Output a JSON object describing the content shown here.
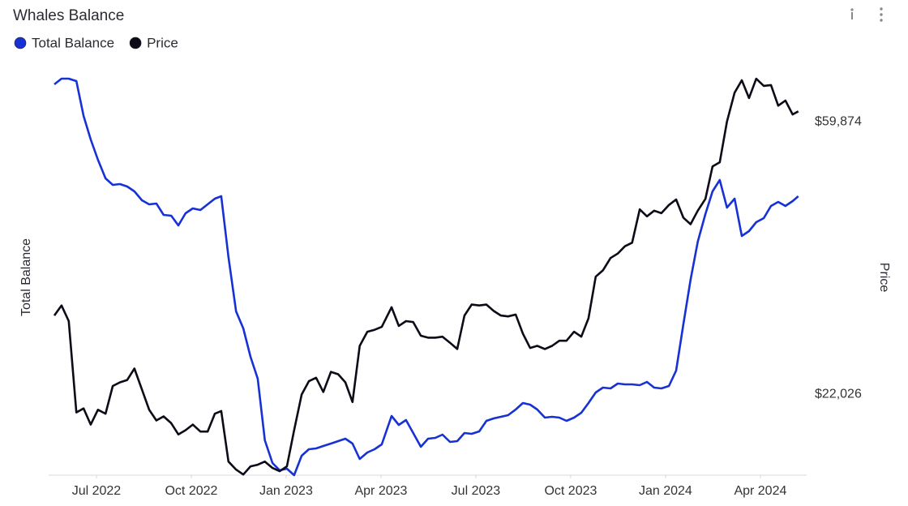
{
  "chart_data": {
    "type": "line",
    "title": "Whales Balance",
    "y_label": "Total Balance",
    "y2_label": "Price",
    "legend": "top-left",
    "y2scale": "log",
    "x": [
      2022.389,
      2022.408,
      2022.427,
      2022.447,
      2022.466,
      2022.485,
      2022.504,
      2022.524,
      2022.543,
      2022.562,
      2022.581,
      2022.6,
      2022.62,
      2022.639,
      2022.658,
      2022.677,
      2022.697,
      2022.716,
      2022.735,
      2022.754,
      2022.774,
      2022.793,
      2022.812,
      2022.829,
      2022.848,
      2022.868,
      2022.887,
      2022.906,
      2022.925,
      2022.944,
      2022.964,
      2022.983,
      2023.002,
      2023.021,
      2023.041,
      2023.06,
      2023.079,
      2023.098,
      2023.118,
      2023.137,
      2023.156,
      2023.175,
      2023.194,
      2023.214,
      2023.233,
      2023.252,
      2023.278,
      2023.297,
      2023.316,
      2023.335,
      2023.355,
      2023.374,
      2023.393,
      2023.412,
      2023.432,
      2023.451,
      2023.47,
      2023.489,
      2023.509,
      2023.528,
      2023.547,
      2023.566,
      2023.585,
      2023.605,
      2023.624,
      2023.643,
      2023.662,
      2023.682,
      2023.701,
      2023.72,
      2023.739,
      2023.759,
      2023.778,
      2023.797,
      2023.816,
      2023.835,
      2023.855,
      2023.874,
      2023.893,
      2023.912,
      2023.932,
      2023.951,
      2023.97,
      2023.989,
      2024.009,
      2024.028,
      2024.047,
      2024.066,
      2024.085,
      2024.105,
      2024.124,
      2024.143,
      2024.162,
      2024.182,
      2024.201,
      2024.22,
      2024.239,
      2024.259,
      2024.278,
      2024.297,
      2024.316,
      2024.335,
      2024.35
    ],
    "xlim": [
      2022.374,
      2024.372
    ],
    "xticks": [
      {
        "value": 2022.5,
        "label": "Jul 2022"
      },
      {
        "value": 2022.75,
        "label": "Oct 2022"
      },
      {
        "value": 2023.0,
        "label": "Jan 2023"
      },
      {
        "value": 2023.25,
        "label": "Apr 2023"
      },
      {
        "value": 2023.5,
        "label": "Jul 2023"
      },
      {
        "value": 2023.75,
        "label": "Oct 2023"
      },
      {
        "value": 2024.0,
        "label": "Jan 2024"
      },
      {
        "value": 2024.25,
        "label": "Apr 2024"
      }
    ],
    "ylim": [
      0,
      496
    ],
    "y2lim": [
      16360,
      71600
    ],
    "y2ticks": [
      {
        "value": 22026,
        "label": "$22,026"
      },
      {
        "value": 59874,
        "label": "$59,874"
      }
    ],
    "series": [
      {
        "name": "Total Balance",
        "color": "#1631d4",
        "values": [
          482,
          489,
          489,
          486,
          443,
          414,
          389,
          366,
          358,
          359,
          356,
          350,
          339,
          334,
          335,
          321,
          320,
          308,
          323,
          329,
          327,
          334,
          341,
          344,
          269,
          202,
          181,
          146,
          119,
          43,
          15,
          6,
          8,
          0,
          24,
          32,
          33,
          36,
          39,
          42,
          45,
          39,
          20,
          28,
          32,
          38,
          73,
          62,
          68,
          52,
          35,
          45,
          46,
          50,
          41,
          42,
          52,
          51,
          54,
          67,
          70,
          72,
          74,
          81,
          89,
          87,
          81,
          71,
          72,
          71,
          67,
          71,
          77,
          89,
          102,
          108,
          107,
          113,
          112,
          112,
          111,
          115,
          108,
          107,
          110,
          129,
          186,
          241,
          288,
          322,
          350,
          364,
          330,
          341,
          295,
          301,
          312,
          317,
          332,
          337,
          332,
          338,
          344
        ]
      },
      {
        "name": "Price",
        "color": "#0d0b17",
        "axis": "y2",
        "values": [
          29400,
          30500,
          28800,
          20600,
          20900,
          19700,
          20800,
          20500,
          22700,
          23000,
          23200,
          24200,
          22400,
          20800,
          20000,
          20300,
          19800,
          19000,
          19300,
          19700,
          19200,
          19200,
          20500,
          20700,
          17200,
          16700,
          16400,
          16900,
          17000,
          17200,
          16800,
          16600,
          16900,
          19300,
          22000,
          23100,
          23400,
          22200,
          23900,
          23700,
          23000,
          21400,
          26300,
          27700,
          27900,
          28200,
          30300,
          28300,
          28800,
          28700,
          27300,
          27100,
          27100,
          27200,
          26600,
          26000,
          29400,
          30600,
          30500,
          30600,
          29900,
          29400,
          29300,
          29500,
          27500,
          26100,
          26300,
          26000,
          26300,
          26800,
          26800,
          27700,
          27200,
          29100,
          33900,
          34700,
          36300,
          36900,
          37900,
          38400,
          43400,
          42300,
          43200,
          42800,
          44100,
          45000,
          42100,
          41100,
          43200,
          45100,
          50800,
          51600,
          59900,
          66600,
          69700,
          65300,
          70100,
          68300,
          68500,
          63500,
          64700,
          61500,
          62200
        ]
      }
    ]
  }
}
